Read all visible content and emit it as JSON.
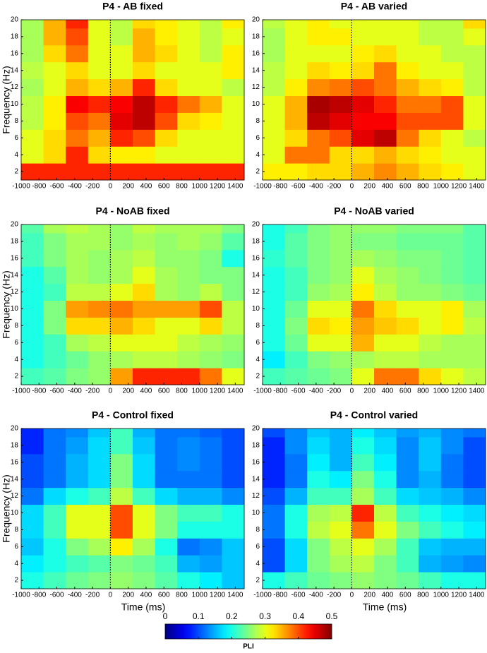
{
  "chart_data": [
    {
      "type": "heatmap",
      "title": "P4 - AB fixed",
      "ylabel": "Frequency (Hz)",
      "x": [
        -875,
        -625,
        -375,
        -125,
        125,
        375,
        625,
        875,
        1125,
        1375
      ],
      "y": [
        2,
        4,
        6,
        8,
        10,
        12,
        14,
        16,
        18,
        20
      ],
      "z": [
        [
          0.42,
          0.42,
          0.42,
          0.42,
          0.42,
          0.42,
          0.42,
          0.42,
          0.42,
          0.42
        ],
        [
          0.3,
          0.33,
          0.42,
          0.33,
          0.32,
          0.32,
          0.3,
          0.3,
          0.3,
          0.3
        ],
        [
          0.3,
          0.33,
          0.38,
          0.35,
          0.42,
          0.4,
          0.33,
          0.3,
          0.3,
          0.3
        ],
        [
          0.28,
          0.32,
          0.4,
          0.38,
          0.45,
          0.47,
          0.4,
          0.33,
          0.32,
          0.3
        ],
        [
          0.28,
          0.32,
          0.44,
          0.42,
          0.44,
          0.47,
          0.42,
          0.38,
          0.35,
          0.3
        ],
        [
          0.27,
          0.3,
          0.35,
          0.33,
          0.35,
          0.42,
          0.33,
          0.3,
          0.3,
          0.28
        ],
        [
          0.28,
          0.3,
          0.33,
          0.3,
          0.3,
          0.33,
          0.3,
          0.3,
          0.3,
          0.32
        ],
        [
          0.27,
          0.33,
          0.38,
          0.3,
          0.3,
          0.35,
          0.33,
          0.3,
          0.28,
          0.32
        ],
        [
          0.27,
          0.35,
          0.4,
          0.3,
          0.28,
          0.35,
          0.32,
          0.3,
          0.28,
          0.3
        ],
        [
          0.27,
          0.35,
          0.42,
          0.3,
          0.28,
          0.33,
          0.32,
          0.3,
          0.28,
          0.32
        ]
      ],
      "xlim": [
        -1000,
        1500
      ],
      "ylim": [
        1,
        20
      ],
      "xticks": [
        -1000,
        -800,
        -600,
        -400,
        -200,
        0,
        200,
        400,
        600,
        800,
        1000,
        1200,
        1400
      ],
      "yticks": [
        2,
        4,
        6,
        8,
        10,
        12,
        14,
        16,
        18,
        20
      ],
      "vline": 0,
      "clim": [
        0,
        0.5
      ],
      "colormap": "jet"
    },
    {
      "type": "heatmap",
      "title": "P4 - AB varied",
      "x": [
        -875,
        -625,
        -375,
        -125,
        125,
        375,
        625,
        875,
        1125,
        1375
      ],
      "y": [
        2,
        4,
        6,
        8,
        10,
        12,
        14,
        16,
        18,
        20
      ],
      "z": [
        [
          0.32,
          0.32,
          0.33,
          0.33,
          0.35,
          0.37,
          0.35,
          0.33,
          0.32,
          0.3
        ],
        [
          0.3,
          0.38,
          0.38,
          0.33,
          0.33,
          0.35,
          0.33,
          0.32,
          0.3,
          0.3
        ],
        [
          0.3,
          0.33,
          0.38,
          0.4,
          0.45,
          0.47,
          0.38,
          0.33,
          0.3,
          0.28
        ],
        [
          0.3,
          0.35,
          0.47,
          0.45,
          0.44,
          0.44,
          0.4,
          0.4,
          0.4,
          0.3
        ],
        [
          0.3,
          0.35,
          0.48,
          0.47,
          0.45,
          0.42,
          0.38,
          0.38,
          0.4,
          0.3
        ],
        [
          0.28,
          0.32,
          0.37,
          0.38,
          0.4,
          0.38,
          0.35,
          0.33,
          0.32,
          0.28
        ],
        [
          0.28,
          0.3,
          0.33,
          0.32,
          0.33,
          0.38,
          0.32,
          0.3,
          0.3,
          0.28
        ],
        [
          0.27,
          0.3,
          0.3,
          0.3,
          0.32,
          0.33,
          0.3,
          0.3,
          0.28,
          0.28
        ],
        [
          0.27,
          0.3,
          0.32,
          0.32,
          0.3,
          0.3,
          0.3,
          0.28,
          0.28,
          0.3
        ],
        [
          0.28,
          0.3,
          0.32,
          0.3,
          0.3,
          0.3,
          0.3,
          0.28,
          0.28,
          0.33
        ]
      ],
      "xlim": [
        -1000,
        1500
      ],
      "ylim": [
        1,
        20
      ],
      "xticks": [
        -1000,
        -800,
        -600,
        -400,
        -200,
        0,
        200,
        400,
        600,
        800,
        1000,
        1200,
        1400
      ],
      "yticks": [
        2,
        4,
        6,
        8,
        10,
        12,
        14,
        16,
        18,
        20
      ],
      "vline": 0,
      "clim": [
        0,
        0.5
      ],
      "colormap": "jet"
    },
    {
      "type": "heatmap",
      "title": "P4 - NoAB fixed",
      "ylabel": "Frequency (Hz)",
      "x": [
        -875,
        -625,
        -375,
        -125,
        125,
        375,
        625,
        875,
        1125,
        1375
      ],
      "y": [
        2,
        4,
        6,
        8,
        10,
        12,
        14,
        16,
        18,
        20
      ],
      "z": [
        [
          0.22,
          0.23,
          0.25,
          0.26,
          0.36,
          0.42,
          0.42,
          0.42,
          0.38,
          0.3
        ],
        [
          0.2,
          0.22,
          0.24,
          0.26,
          0.27,
          0.28,
          0.28,
          0.27,
          0.26,
          0.25
        ],
        [
          0.2,
          0.22,
          0.27,
          0.28,
          0.3,
          0.3,
          0.3,
          0.28,
          0.27,
          0.26
        ],
        [
          0.2,
          0.25,
          0.33,
          0.33,
          0.35,
          0.33,
          0.3,
          0.3,
          0.33,
          0.28
        ],
        [
          0.2,
          0.25,
          0.36,
          0.37,
          0.38,
          0.36,
          0.36,
          0.36,
          0.4,
          0.28
        ],
        [
          0.2,
          0.22,
          0.28,
          0.28,
          0.3,
          0.33,
          0.27,
          0.26,
          0.28,
          0.25
        ],
        [
          0.2,
          0.23,
          0.27,
          0.26,
          0.27,
          0.3,
          0.27,
          0.26,
          0.25,
          0.25
        ],
        [
          0.22,
          0.25,
          0.27,
          0.26,
          0.27,
          0.28,
          0.26,
          0.26,
          0.25,
          0.2
        ],
        [
          0.22,
          0.25,
          0.27,
          0.27,
          0.26,
          0.27,
          0.26,
          0.27,
          0.26,
          0.23
        ],
        [
          0.23,
          0.27,
          0.28,
          0.27,
          0.26,
          0.28,
          0.27,
          0.27,
          0.27,
          0.25
        ]
      ],
      "xlim": [
        -1000,
        1500
      ],
      "ylim": [
        1,
        20
      ],
      "xticks": [
        -1000,
        -800,
        -600,
        -400,
        -200,
        0,
        200,
        400,
        600,
        800,
        1000,
        1200,
        1400
      ],
      "yticks": [
        2,
        4,
        6,
        8,
        10,
        12,
        14,
        16,
        18,
        20
      ],
      "vline": 0,
      "clim": [
        0,
        0.5
      ],
      "colormap": "jet"
    },
    {
      "type": "heatmap",
      "title": "P4 - NoAB varied",
      "x": [
        -875,
        -625,
        -375,
        -125,
        125,
        375,
        625,
        875,
        1125,
        1375
      ],
      "y": [
        2,
        4,
        6,
        8,
        10,
        12,
        14,
        16,
        18,
        20
      ],
      "z": [
        [
          0.22,
          0.23,
          0.24,
          0.25,
          0.3,
          0.38,
          0.38,
          0.33,
          0.3,
          0.28
        ],
        [
          0.18,
          0.22,
          0.25,
          0.26,
          0.27,
          0.28,
          0.28,
          0.27,
          0.27,
          0.27
        ],
        [
          0.2,
          0.24,
          0.3,
          0.3,
          0.35,
          0.3,
          0.3,
          0.28,
          0.27,
          0.27
        ],
        [
          0.2,
          0.25,
          0.33,
          0.32,
          0.36,
          0.34,
          0.33,
          0.3,
          0.32,
          0.28
        ],
        [
          0.2,
          0.24,
          0.3,
          0.3,
          0.38,
          0.33,
          0.3,
          0.3,
          0.32,
          0.27
        ],
        [
          0.2,
          0.22,
          0.26,
          0.27,
          0.32,
          0.28,
          0.26,
          0.26,
          0.25,
          0.24
        ],
        [
          0.2,
          0.22,
          0.25,
          0.26,
          0.3,
          0.27,
          0.26,
          0.25,
          0.24,
          0.23
        ],
        [
          0.21,
          0.23,
          0.25,
          0.26,
          0.27,
          0.26,
          0.25,
          0.25,
          0.24,
          0.23
        ],
        [
          0.2,
          0.23,
          0.25,
          0.26,
          0.25,
          0.25,
          0.24,
          0.24,
          0.24,
          0.23
        ],
        [
          0.2,
          0.22,
          0.25,
          0.26,
          0.26,
          0.26,
          0.25,
          0.25,
          0.25,
          0.23
        ]
      ],
      "xlim": [
        -1000,
        1500
      ],
      "ylim": [
        1,
        20
      ],
      "xticks": [
        -1000,
        -800,
        -600,
        -400,
        -200,
        0,
        200,
        400,
        600,
        800,
        1000,
        1200,
        1400
      ],
      "yticks": [
        2,
        4,
        6,
        8,
        10,
        12,
        14,
        16,
        18,
        20
      ],
      "vline": 0,
      "clim": [
        0,
        0.5
      ],
      "colormap": "jet"
    },
    {
      "type": "heatmap",
      "title": "P4 - Control fixed",
      "ylabel": "Frequency (Hz)",
      "xlabel": "Time (ms)",
      "x": [
        -875,
        -625,
        -375,
        -125,
        125,
        375,
        625,
        875,
        1125,
        1375
      ],
      "y": [
        2,
        4,
        6,
        8,
        10,
        12,
        14,
        16,
        18,
        20
      ],
      "z": [
        [
          0.2,
          0.22,
          0.24,
          0.25,
          0.26,
          0.25,
          0.23,
          0.2,
          0.18,
          0.16
        ],
        [
          0.18,
          0.2,
          0.22,
          0.23,
          0.25,
          0.24,
          0.22,
          0.15,
          0.14,
          0.16
        ],
        [
          0.16,
          0.2,
          0.25,
          0.27,
          0.32,
          0.27,
          0.2,
          0.12,
          0.13,
          0.16
        ],
        [
          0.17,
          0.22,
          0.3,
          0.3,
          0.4,
          0.3,
          0.25,
          0.2,
          0.2,
          0.2
        ],
        [
          0.17,
          0.22,
          0.3,
          0.3,
          0.4,
          0.3,
          0.25,
          0.22,
          0.22,
          0.2
        ],
        [
          0.12,
          0.17,
          0.2,
          0.22,
          0.28,
          0.22,
          0.17,
          0.15,
          0.15,
          0.13
        ],
        [
          0.1,
          0.12,
          0.15,
          0.17,
          0.25,
          0.17,
          0.12,
          0.12,
          0.12,
          0.1
        ],
        [
          0.1,
          0.12,
          0.15,
          0.17,
          0.25,
          0.17,
          0.12,
          0.13,
          0.12,
          0.1
        ],
        [
          0.08,
          0.12,
          0.14,
          0.17,
          0.22,
          0.16,
          0.12,
          0.13,
          0.12,
          0.1
        ],
        [
          0.08,
          0.12,
          0.13,
          0.16,
          0.22,
          0.15,
          0.12,
          0.12,
          0.11,
          0.1
        ]
      ],
      "xlim": [
        -1000,
        1500
      ],
      "ylim": [
        1,
        20
      ],
      "xticks": [
        -1000,
        -800,
        -600,
        -400,
        -200,
        0,
        200,
        400,
        600,
        800,
        1000,
        1200,
        1400
      ],
      "yticks": [
        2,
        4,
        6,
        8,
        10,
        12,
        14,
        16,
        18,
        20
      ],
      "vline": 0,
      "clim": [
        0,
        0.5
      ],
      "colormap": "jet"
    },
    {
      "type": "heatmap",
      "title": "P4 - Control varied",
      "xlabel": "Time (ms)",
      "x": [
        -875,
        -625,
        -375,
        -125,
        125,
        375,
        625,
        875,
        1125,
        1375
      ],
      "y": [
        2,
        4,
        6,
        8,
        10,
        12,
        14,
        16,
        18,
        20
      ],
      "z": [
        [
          0.2,
          0.22,
          0.24,
          0.25,
          0.26,
          0.25,
          0.24,
          0.22,
          0.2,
          0.2
        ],
        [
          0.1,
          0.17,
          0.25,
          0.27,
          0.28,
          0.25,
          0.22,
          0.15,
          0.14,
          0.13
        ],
        [
          0.1,
          0.17,
          0.25,
          0.28,
          0.3,
          0.27,
          0.22,
          0.16,
          0.15,
          0.15
        ],
        [
          0.12,
          0.2,
          0.28,
          0.3,
          0.38,
          0.3,
          0.25,
          0.22,
          0.2,
          0.18
        ],
        [
          0.12,
          0.2,
          0.27,
          0.28,
          0.42,
          0.28,
          0.22,
          0.2,
          0.18,
          0.17
        ],
        [
          0.1,
          0.15,
          0.22,
          0.22,
          0.27,
          0.22,
          0.17,
          0.16,
          0.15,
          0.13
        ],
        [
          0.08,
          0.12,
          0.2,
          0.18,
          0.25,
          0.2,
          0.13,
          0.15,
          0.12,
          0.1
        ],
        [
          0.08,
          0.12,
          0.18,
          0.15,
          0.22,
          0.18,
          0.13,
          0.16,
          0.12,
          0.1
        ],
        [
          0.08,
          0.13,
          0.17,
          0.15,
          0.2,
          0.17,
          0.13,
          0.16,
          0.13,
          0.1
        ],
        [
          0.1,
          0.13,
          0.16,
          0.15,
          0.18,
          0.16,
          0.14,
          0.15,
          0.13,
          0.12
        ]
      ],
      "xlim": [
        -1000,
        1500
      ],
      "ylim": [
        1,
        20
      ],
      "xticks": [
        -1000,
        -800,
        -600,
        -400,
        -200,
        0,
        200,
        400,
        600,
        800,
        1000,
        1200,
        1400
      ],
      "yticks": [
        2,
        4,
        6,
        8,
        10,
        12,
        14,
        16,
        18,
        20
      ],
      "vline": 0,
      "clim": [
        0,
        0.5
      ],
      "colormap": "jet"
    }
  ],
  "colorbar": {
    "label": "PLI",
    "clim": [
      0,
      0.5
    ],
    "ticks": [
      0,
      0.1,
      0.2,
      0.3,
      0.4,
      0.5
    ],
    "colormap": "jet"
  }
}
